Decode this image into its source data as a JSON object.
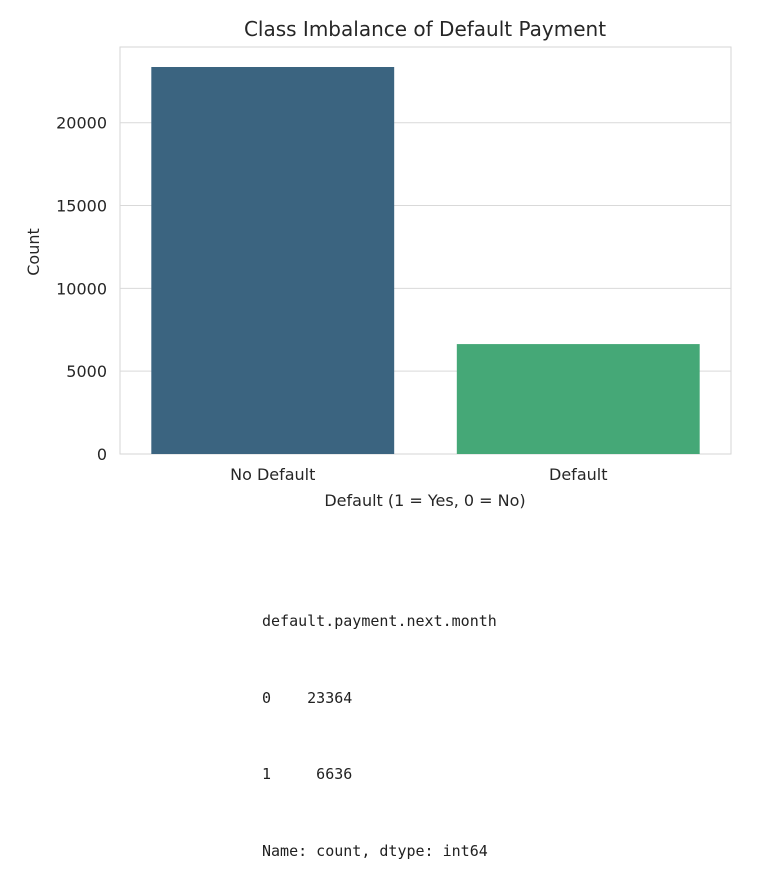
{
  "chart_data": {
    "type": "bar",
    "title": "Class Imbalance of Default Payment",
    "xlabel": "Default (1 = Yes, 0 = No)",
    "ylabel": "Count",
    "categories": [
      "No Default",
      "Default"
    ],
    "values": [
      23364,
      6636
    ],
    "colors": [
      "#3b6480",
      "#45a877"
    ],
    "ylim": [
      0,
      23364
    ],
    "yticks": [
      0,
      5000,
      10000,
      15000,
      20000
    ],
    "grid": true,
    "legend": "none"
  },
  "output": {
    "lines": [
      "default.payment.next.month",
      "0    23364",
      "1     6636",
      "Name: count, dtype: int64"
    ]
  }
}
